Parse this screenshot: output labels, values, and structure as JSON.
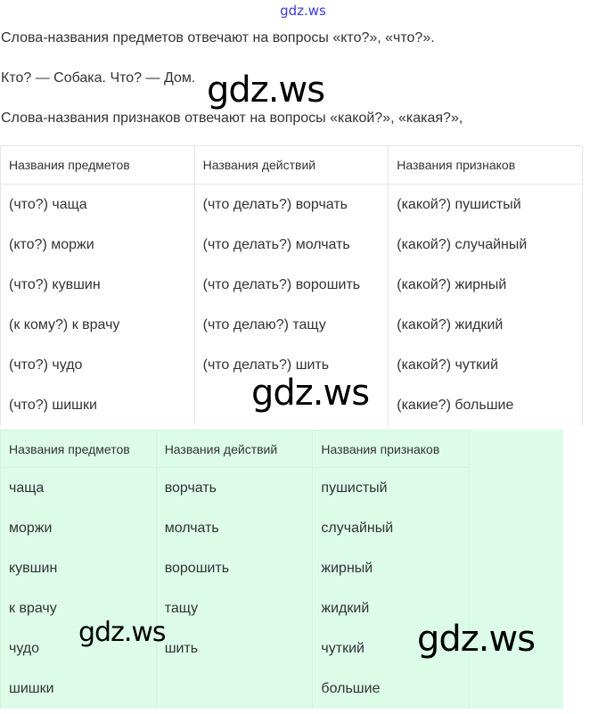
{
  "header_watermark": "gdz.ws",
  "paragraphs": [
    "Слова-названия предметов отвечают на вопросы «кто?», «что?».",
    "Кто? — Собака. Что? — Дом.",
    "Слова-названия признаков отвечают на вопросы «какой?», «какая?»,"
  ],
  "watermarks": [
    "gdz.ws",
    "gdz.ws",
    "gdz.ws",
    "gdz.ws"
  ],
  "table1": {
    "headers": [
      "Названия предметов",
      "Названия действий",
      "Названия признаков"
    ],
    "rows": [
      [
        "(что?) чаща",
        "(что делать?) ворчать",
        "(какой?) пушистый"
      ],
      [
        "(кто?) моржи",
        "(что делать?) молчать",
        "(какой?) случайный"
      ],
      [
        "(что?) кувшин",
        "(что делать?) ворошить",
        "(какой?) жирный"
      ],
      [
        "(к кому?) к врачу",
        "(что делаю?) тащу",
        "(какой?) жидкий"
      ],
      [
        "(что?) чудо",
        "(что делать?) шить",
        "(какой?) чуткий"
      ],
      [
        "(что?) шишки",
        "",
        "(какие?) большие"
      ]
    ]
  },
  "table2": {
    "headers": [
      "Названия предметов",
      "Названия действий",
      "Названия признаков"
    ],
    "rows": [
      [
        "чаща",
        "ворчать",
        "пушистый"
      ],
      [
        "моржи",
        "молчать",
        "случайный"
      ],
      [
        "кувшин",
        "ворошить",
        "жирный"
      ],
      [
        "к врачу",
        "тащу",
        "жидкий"
      ],
      [
        "чудо",
        "шить",
        "чуткий"
      ],
      [
        "шишки",
        "",
        "большие"
      ]
    ],
    "background": "#dcfce9"
  }
}
